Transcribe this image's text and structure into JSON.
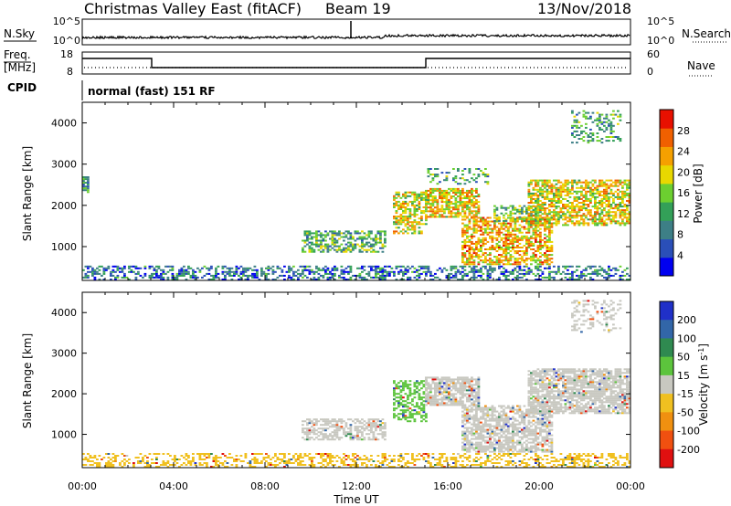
{
  "header": {
    "station": "Christmas Valley East (fitACF)",
    "beam": "Beam 19",
    "date": "13/Nov/2018"
  },
  "top_panels": {
    "nsky_label": "N.Sky",
    "nsky_ticks": [
      "10^5",
      "10^0"
    ],
    "nsearch_label": "N.Search",
    "nsearch_ticks": [
      "10^5",
      "10^0"
    ],
    "freq_label_1": "Freq.",
    "freq_label_2": "[MHz]",
    "freq_ticks": [
      "18",
      "8"
    ],
    "nave_label": "Nave",
    "nave_ticks": [
      "60",
      "0"
    ],
    "cpid_label": "CPID",
    "cpid_text": "normal (fast) 151 RF"
  },
  "colors": {
    "power": [
      "#0000f0",
      "#2a4fb8",
      "#3d7f86",
      "#33a058",
      "#6ccf30",
      "#e8d800",
      "#f5a000",
      "#f06000",
      "#e81000"
    ],
    "velocity_pos": [
      "#2030c8",
      "#3266a8",
      "#2f8a50",
      "#5cc43c"
    ],
    "velocity_gray": "#c8c8c0",
    "velocity_neg": [
      "#f0c020",
      "#f09010",
      "#f05010",
      "#e01010"
    ],
    "line": "#000000"
  },
  "chart_data": [
    {
      "type": "heatmap",
      "name": "power",
      "xlabel": "",
      "ylabel": "Slant Range [km]",
      "ylim": [
        180,
        4500
      ],
      "xlim": [
        0,
        24
      ],
      "y_ticks": [
        "1000",
        "2000",
        "3000",
        "4000"
      ],
      "colorbar": {
        "label": "Power [dB]",
        "range": [
          0,
          32
        ],
        "ticks": [
          "4",
          "8",
          "12",
          "16",
          "20",
          "24",
          "28"
        ]
      },
      "regions": [
        {
          "t0": 0.0,
          "t1": 24.0,
          "r0": 180,
          "r1": 500,
          "density": 0.45,
          "value_mean": 8
        },
        {
          "t0": 9.6,
          "t1": 13.2,
          "r0": 850,
          "r1": 1350,
          "density": 0.55,
          "value_mean": 13
        },
        {
          "t0": 13.6,
          "t1": 15.0,
          "r0": 1300,
          "r1": 2300,
          "density": 0.55,
          "value_mean": 19
        },
        {
          "t0": 15.0,
          "t1": 17.4,
          "r0": 1700,
          "r1": 2400,
          "density": 0.7,
          "value_mean": 21
        },
        {
          "t0": 16.6,
          "t1": 20.6,
          "r0": 550,
          "r1": 1700,
          "density": 0.6,
          "value_mean": 22
        },
        {
          "t0": 18.0,
          "t1": 20.0,
          "r0": 1600,
          "r1": 2000,
          "density": 0.45,
          "value_mean": 14
        },
        {
          "t0": 19.5,
          "t1": 24.0,
          "r0": 1500,
          "r1": 2600,
          "density": 0.65,
          "value_mean": 20
        },
        {
          "t0": 15.0,
          "t1": 17.8,
          "r0": 2500,
          "r1": 2900,
          "density": 0.25,
          "value_mean": 12
        },
        {
          "t0": 21.4,
          "t1": 23.6,
          "r0": 3500,
          "r1": 4300,
          "density": 0.3,
          "value_mean": 12
        },
        {
          "t0": 0.0,
          "t1": 0.3,
          "r0": 2300,
          "r1": 2700,
          "density": 0.8,
          "value_mean": 10
        }
      ]
    },
    {
      "type": "heatmap",
      "name": "velocity",
      "xlabel": "Time UT",
      "ylabel": "Slant Range [km]",
      "ylim": [
        180,
        4500
      ],
      "xlim": [
        0,
        24
      ],
      "x_ticks": [
        "00:00",
        "04:00",
        "08:00",
        "12:00",
        "16:00",
        "20:00",
        "00:00"
      ],
      "y_ticks": [
        "1000",
        "2000",
        "3000",
        "4000"
      ],
      "colorbar": {
        "label": "Velocity [m s-1]",
        "range": [
          -250,
          250
        ],
        "ticks": [
          "200",
          "100",
          "50",
          "15",
          "-15",
          "-50",
          "-100",
          "-200"
        ]
      },
      "regions": [
        {
          "t0": 0.0,
          "t1": 24.0,
          "r0": 180,
          "r1": 500,
          "density": 0.4,
          "value_mean": -30
        },
        {
          "t0": 9.6,
          "t1": 13.2,
          "r0": 850,
          "r1": 1350,
          "density": 0.6,
          "value_mean": 0
        },
        {
          "t0": 13.6,
          "t1": 15.0,
          "r0": 1300,
          "r1": 2300,
          "density": 0.5,
          "value_mean": 40
        },
        {
          "t0": 15.0,
          "t1": 17.4,
          "r0": 1700,
          "r1": 2400,
          "density": 0.8,
          "value_mean": 0
        },
        {
          "t0": 16.6,
          "t1": 20.6,
          "r0": 550,
          "r1": 1700,
          "density": 0.7,
          "value_mean": 0
        },
        {
          "t0": 19.5,
          "t1": 24.0,
          "r0": 1500,
          "r1": 2600,
          "density": 0.75,
          "value_mean": 0
        },
        {
          "t0": 21.4,
          "t1": 23.6,
          "r0": 3500,
          "r1": 4300,
          "density": 0.3,
          "value_mean": 0
        }
      ]
    }
  ]
}
